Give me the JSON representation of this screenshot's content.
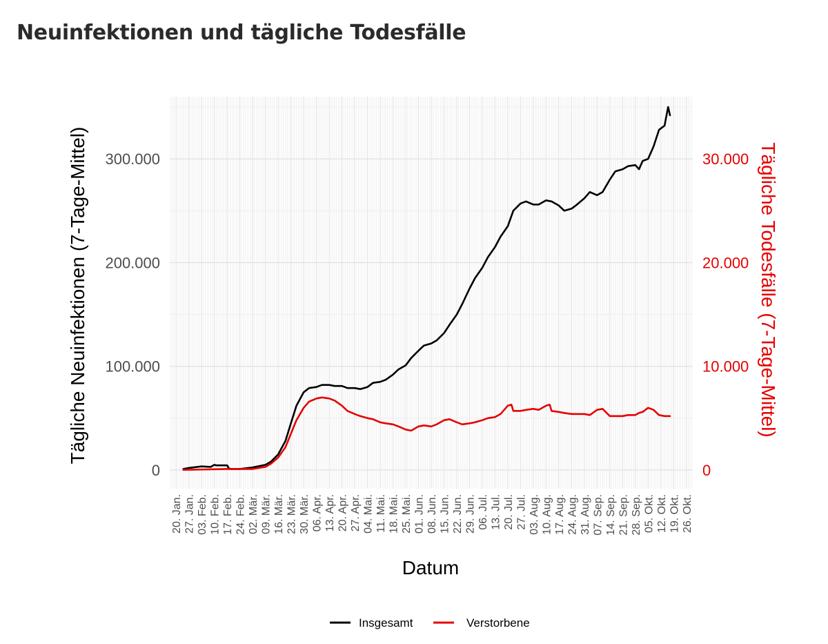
{
  "title": "Neuinfektionen und tägliche Todesfälle",
  "chart_data": {
    "type": "line",
    "xlabel": "Datum",
    "ylabel_left": "Tägliche Neuinfektionen (7-Tage-Mittel)",
    "ylabel_right": "Tägliche Todesfälle (7-Tage-Mittel)",
    "ylim_left": [
      -18000,
      360000
    ],
    "ylim_right": [
      -1800,
      36000
    ],
    "left_ticks": [
      {
        "value": 0,
        "label": "0"
      },
      {
        "value": 100000,
        "label": "100.000"
      },
      {
        "value": 200000,
        "label": "200.000"
      },
      {
        "value": 300000,
        "label": "300.000"
      }
    ],
    "right_ticks": [
      {
        "value": 0,
        "label": "0"
      },
      {
        "value": 10000,
        "label": "10.000"
      },
      {
        "value": 20000,
        "label": "20.000"
      },
      {
        "value": 30000,
        "label": "30.000"
      }
    ],
    "x_ticks": [
      "20. Jan.",
      "27. Jan.",
      "03. Feb.",
      "10. Feb.",
      "17. Feb.",
      "24. Feb.",
      "02. Mär.",
      "09. Mär.",
      "16. Mär.",
      "23. Mär.",
      "30. Mär.",
      "06. Apr.",
      "13. Apr.",
      "20. Apr.",
      "27. Apr.",
      "04. Mai.",
      "11. Mai.",
      "18. Mai.",
      "25. Mai.",
      "01. Jun.",
      "08. Jun.",
      "15. Jun.",
      "22. Jun.",
      "29. Jun.",
      "06. Jul.",
      "13. Jul.",
      "20. Jul.",
      "27. Jul.",
      "03. Aug.",
      "10. Aug.",
      "17. Aug.",
      "24. Aug.",
      "31. Aug.",
      "07. Sep.",
      "14. Sep.",
      "21. Sep.",
      "28. Sep.",
      "05. Okt.",
      "12. Okt.",
      "19. Okt.",
      "26. Okt."
    ],
    "grid": true,
    "legend_position": "bottom",
    "series": [
      {
        "name": "Insgesamt",
        "axis": "left",
        "color": "#000000",
        "x": [
          "24. Jan.",
          "27. Jan.",
          "03. Feb.",
          "08. Feb.",
          "10. Feb.",
          "11. Feb.",
          "17. Feb.",
          "18. Feb.",
          "19. Feb.",
          "24. Feb.",
          "02. Mär.",
          "09. Mär.",
          "12. Mär.",
          "16. Mär.",
          "20. Mär.",
          "23. Mär.",
          "26. Mär.",
          "30. Mär.",
          "02. Apr.",
          "06. Apr.",
          "09. Apr.",
          "13. Apr.",
          "16. Apr.",
          "20. Apr.",
          "23. Apr.",
          "27. Apr.",
          "30. Apr.",
          "04. Mai.",
          "07. Mai.",
          "11. Mai.",
          "14. Mai.",
          "18. Mai.",
          "21. Mai.",
          "25. Mai.",
          "28. Mai.",
          "01. Jun.",
          "04. Jun.",
          "08. Jun.",
          "11. Jun.",
          "15. Jun.",
          "18. Jun.",
          "22. Jun.",
          "25. Jun.",
          "29. Jun.",
          "02. Jul.",
          "06. Jul.",
          "09. Jul.",
          "13. Jul.",
          "16. Jul.",
          "20. Jul.",
          "23. Jul.",
          "27. Jul.",
          "30. Jul.",
          "03. Aug.",
          "06. Aug.",
          "10. Aug.",
          "13. Aug.",
          "17. Aug.",
          "20. Aug.",
          "24. Aug.",
          "27. Aug.",
          "31. Aug.",
          "03. Sep.",
          "07. Sep.",
          "10. Sep.",
          "14. Sep.",
          "17. Sep.",
          "21. Sep.",
          "24. Sep.",
          "28. Sep.",
          "30. Sep.",
          "02. Okt.",
          "05. Okt.",
          "08. Okt.",
          "11. Okt.",
          "14. Okt.",
          "16. Okt.",
          "17. Okt."
        ],
        "values": [
          1000,
          2000,
          3500,
          3000,
          5000,
          4500,
          4500,
          1500,
          1000,
          1000,
          2500,
          5000,
          8000,
          15000,
          28000,
          45000,
          62000,
          75000,
          79000,
          80000,
          82000,
          82000,
          81000,
          81000,
          79000,
          79000,
          78000,
          80000,
          84000,
          85000,
          87000,
          92000,
          97000,
          101000,
          108000,
          115000,
          120000,
          122000,
          125000,
          132000,
          140000,
          150000,
          160000,
          175000,
          185000,
          195000,
          205000,
          215000,
          225000,
          235000,
          250000,
          257000,
          259000,
          256000,
          256000,
          260000,
          259000,
          255000,
          250000,
          252000,
          256000,
          262000,
          268000,
          265000,
          268000,
          280000,
          288000,
          290000,
          293000,
          294000,
          290000,
          298000,
          300000,
          312000,
          328000,
          332000,
          350000,
          342000
        ]
      },
      {
        "name": "Verstorbene",
        "axis": "right",
        "color": "#e60000",
        "x": [
          "24. Jan.",
          "03. Feb.",
          "17. Feb.",
          "02. Mär.",
          "09. Mär.",
          "12. Mär.",
          "16. Mär.",
          "20. Mär.",
          "23. Mär.",
          "26. Mär.",
          "30. Mär.",
          "02. Apr.",
          "06. Apr.",
          "09. Apr.",
          "13. Apr.",
          "16. Apr.",
          "20. Apr.",
          "23. Apr.",
          "27. Apr.",
          "30. Apr.",
          "04. Mai.",
          "07. Mai.",
          "11. Mai.",
          "14. Mai.",
          "18. Mai.",
          "21. Mai.",
          "25. Mai.",
          "28. Mai.",
          "01. Jun.",
          "04. Jun.",
          "08. Jun.",
          "11. Jun.",
          "15. Jun.",
          "18. Jun.",
          "22. Jun.",
          "25. Jun.",
          "29. Jun.",
          "02. Jul.",
          "06. Jul.",
          "09. Jul.",
          "13. Jul.",
          "16. Jul.",
          "20. Jul.",
          "22. Jul.",
          "23. Jul.",
          "27. Jul.",
          "30. Jul.",
          "03. Aug.",
          "06. Aug.",
          "10. Aug.",
          "12. Aug.",
          "13. Aug.",
          "17. Aug.",
          "20. Aug.",
          "24. Aug.",
          "27. Aug.",
          "31. Aug.",
          "03. Sep.",
          "07. Sep.",
          "10. Sep.",
          "14. Sep.",
          "17. Sep.",
          "21. Sep.",
          "24. Sep.",
          "28. Sep.",
          "30. Sep.",
          "02. Okt.",
          "05. Okt.",
          "08. Okt.",
          "11. Okt.",
          "14. Okt.",
          "17. Okt."
        ],
        "values": [
          20,
          50,
          100,
          100,
          300,
          600,
          1200,
          2200,
          3500,
          4800,
          6000,
          6600,
          6900,
          7000,
          6900,
          6700,
          6200,
          5700,
          5400,
          5200,
          5000,
          4900,
          4600,
          4500,
          4400,
          4200,
          3900,
          3800,
          4200,
          4300,
          4200,
          4400,
          4800,
          4900,
          4600,
          4400,
          4500,
          4600,
          4800,
          5000,
          5100,
          5400,
          6200,
          6300,
          5700,
          5700,
          5800,
          5900,
          5800,
          6200,
          6300,
          5700,
          5600,
          5500,
          5400,
          5400,
          5400,
          5300,
          5800,
          5900,
          5200,
          5200,
          5200,
          5300,
          5300,
          5500,
          5600,
          6000,
          5800,
          5300,
          5200,
          5200
        ]
      }
    ]
  }
}
